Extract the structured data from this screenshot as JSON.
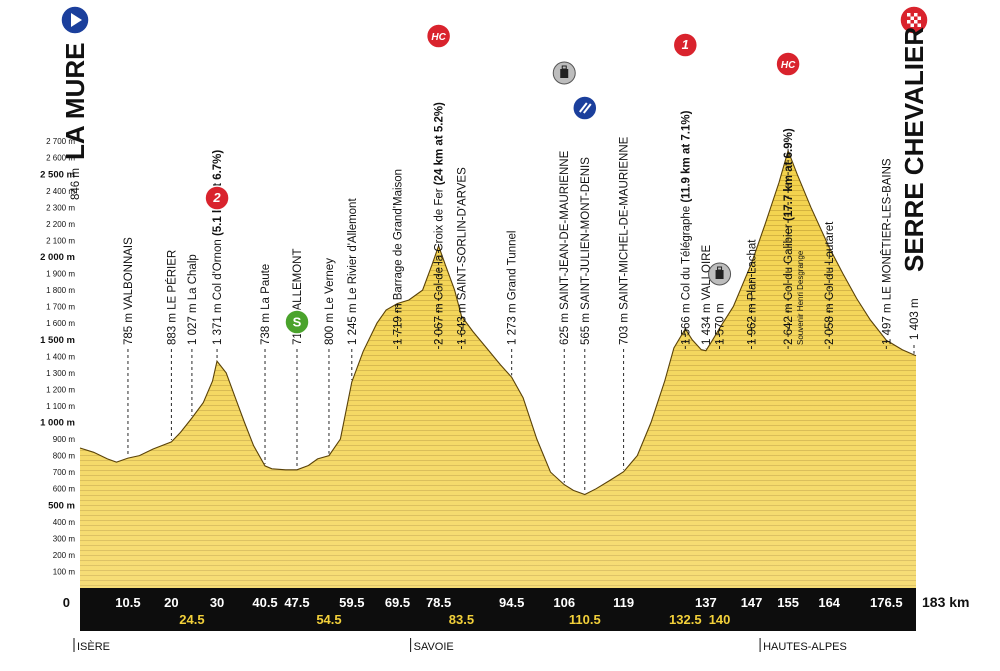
{
  "chart_data": {
    "type": "area",
    "title": "",
    "xlabel": "",
    "ylabel": "",
    "x_unit": "km",
    "total_km": "183 km",
    "xlim": [
      0,
      183
    ],
    "ylim": [
      0,
      2800
    ],
    "y_ticks": [
      {
        "v": 100,
        "label": "100 m",
        "bold": false
      },
      {
        "v": 200,
        "label": "200 m",
        "bold": false
      },
      {
        "v": 300,
        "label": "300 m",
        "bold": false
      },
      {
        "v": 400,
        "label": "400 m",
        "bold": false
      },
      {
        "v": 500,
        "label": "500 m",
        "bold": true
      },
      {
        "v": 600,
        "label": "600 m",
        "bold": false
      },
      {
        "v": 700,
        "label": "700 m",
        "bold": false
      },
      {
        "v": 800,
        "label": "800 m",
        "bold": false
      },
      {
        "v": 900,
        "label": "900 m",
        "bold": false
      },
      {
        "v": 1000,
        "label": "1 000 m",
        "bold": true
      },
      {
        "v": 1100,
        "label": "1 100 m",
        "bold": false
      },
      {
        "v": 1200,
        "label": "1 200 m",
        "bold": false
      },
      {
        "v": 1300,
        "label": "1 300 m",
        "bold": false
      },
      {
        "v": 1400,
        "label": "1 400 m",
        "bold": false
      },
      {
        "v": 1500,
        "label": "1 500 m",
        "bold": true
      },
      {
        "v": 1600,
        "label": "1 600 m",
        "bold": false
      },
      {
        "v": 1700,
        "label": "1 700 m",
        "bold": false
      },
      {
        "v": 1800,
        "label": "1 800 m",
        "bold": false
      },
      {
        "v": 1900,
        "label": "1 900 m",
        "bold": false
      },
      {
        "v": 2000,
        "label": "2 000 m",
        "bold": true
      },
      {
        "v": 2100,
        "label": "2 100 m",
        "bold": false
      },
      {
        "v": 2200,
        "label": "2 200 m",
        "bold": false
      },
      {
        "v": 2300,
        "label": "2 300 m",
        "bold": false
      },
      {
        "v": 2400,
        "label": "2 400 m",
        "bold": false
      },
      {
        "v": 2500,
        "label": "2 500 m",
        "bold": true
      },
      {
        "v": 2600,
        "label": "2 600 m",
        "bold": false
      },
      {
        "v": 2700,
        "label": "2 700 m",
        "bold": false
      }
    ],
    "profile": {
      "x": [
        0,
        3,
        6,
        8,
        10.5,
        13,
        16,
        20,
        22,
        24.5,
        27,
        29,
        30,
        32,
        34,
        36,
        38,
        40.5,
        42,
        45,
        47.5,
        50,
        52,
        54.5,
        57,
        59.5,
        62,
        65,
        67,
        69.5,
        72,
        75,
        77,
        78.5,
        80,
        82,
        83.5,
        86,
        89,
        92,
        94.5,
        97,
        100,
        103,
        106,
        108,
        110.5,
        113,
        116,
        119,
        122,
        125,
        128,
        130,
        132.5,
        134,
        136,
        137,
        138.5,
        140,
        143,
        147,
        150,
        153,
        155,
        157,
        160,
        164,
        167,
        170,
        173,
        176.5,
        180,
        183
      ],
      "y": [
        846,
        820,
        780,
        760,
        785,
        800,
        840,
        883,
        940,
        1027,
        1120,
        1250,
        1371,
        1300,
        1150,
        1000,
        860,
        738,
        720,
        714,
        714,
        740,
        780,
        800,
        900,
        1245,
        1430,
        1600,
        1680,
        1719,
        1740,
        1800,
        1950,
        2067,
        1950,
        1800,
        1643,
        1550,
        1450,
        1350,
        1273,
        1150,
        900,
        700,
        625,
        590,
        565,
        600,
        650,
        703,
        800,
        1000,
        1250,
        1450,
        1566,
        1500,
        1440,
        1434,
        1500,
        1570,
        1700,
        1962,
        2200,
        2450,
        2642,
        2500,
        2300,
        2058,
        1900,
        1750,
        1620,
        1497,
        1440,
        1403
      ]
    },
    "km_markers_top": [
      "10.5",
      "20",
      "30",
      "40.5",
      "47.5",
      "59.5",
      "69.5",
      "78.5",
      "94.5",
      "106",
      "119",
      "137",
      "147",
      "155",
      "164",
      "176.5"
    ],
    "km_markers_bottom": [
      "24.5",
      "54.5",
      "83.5",
      "110.5",
      "132.5",
      "140"
    ],
    "start": {
      "km": "0",
      "label": "846 m",
      "town": "LA MURE"
    },
    "finish": {
      "km": "183",
      "label": "1 403 m",
      "town": "SERRE CHEVALIER"
    },
    "points": [
      {
        "km": 10.5,
        "lines": [
          "785 m VALBONNAIS"
        ]
      },
      {
        "km": 20,
        "lines": [
          "883 m LE PÉRIER"
        ]
      },
      {
        "km": 24.5,
        "lines": [
          "1 027 m La Chalp"
        ]
      },
      {
        "km": 30,
        "lines": [
          "1 371 m Col d'Ornon (5.1 km at 6.7%)"
        ],
        "badge": "2"
      },
      {
        "km": 40.5,
        "lines": [
          "738 m La Paute"
        ]
      },
      {
        "km": 47.5,
        "lines": [
          "714 m ALLEMONT"
        ],
        "badge": "S"
      },
      {
        "km": 54.5,
        "lines": [
          "800 m Le Verney"
        ]
      },
      {
        "km": 59.5,
        "lines": [
          "1 245 m Le Rivier d'Allemont"
        ]
      },
      {
        "km": 69.5,
        "lines": [
          "1 719 m Barrage de Grand'Maison"
        ]
      },
      {
        "km": 78.5,
        "lines": [
          "2 067 m Col de la Croix de Fer (24 km at 5.2%)"
        ],
        "badge": "HC"
      },
      {
        "km": 83.5,
        "lines": [
          "1 643 m SAINT-SORLIN-D'ARVES"
        ]
      },
      {
        "km": 94.5,
        "lines": [
          "1 273 m Grand Tunnel"
        ]
      },
      {
        "km": 106,
        "lines": [
          "625 m SAINT-JEAN-DE-MAURIENNE"
        ],
        "badge": "feed"
      },
      {
        "km": 110.5,
        "lines": [
          "565 m SAINT-JULIEN-MONT-DENIS"
        ],
        "badge": "sprint"
      },
      {
        "km": 119,
        "lines": [
          "703 m SAINT-MICHEL-DE-MAURIENNE"
        ]
      },
      {
        "km": 132.5,
        "lines": [
          "1 566 m Col du Télégraphe (11.9 km at 7.1%)"
        ],
        "badge": "1"
      },
      {
        "km": 137,
        "lines": [
          "1 434 m VALLOIRE"
        ]
      },
      {
        "km": 140,
        "lines": [
          "1 570 m"
        ],
        "badge": "feed"
      },
      {
        "km": 147,
        "lines": [
          "1 962 m Plan Lachat"
        ]
      },
      {
        "km": 155,
        "lines": [
          "2 642 m Col du Galibier (17.7 km at 6.9%)",
          "Souvenir Henri Desgrange"
        ],
        "badge": "HC"
      },
      {
        "km": 164,
        "lines": [
          "2 058 m Col du Lautaret"
        ]
      },
      {
        "km": 176.5,
        "lines": [
          "1 497 m LE MONÊTIER-LES-BAINS"
        ]
      }
    ],
    "regions": [
      {
        "km": 0,
        "label": "ISÈRE"
      },
      {
        "km": 78.5,
        "label": "SAVOIE"
      },
      {
        "km": 155,
        "label": "HAUTES-ALPES"
      }
    ],
    "colors": {
      "fill_light": "#f5d64f",
      "fill_dark": "#e2b12a",
      "band": "#0d0d0d",
      "km_top": "#ffffff",
      "km_bottom": "#f2d03a",
      "badge_red": "#d9232d",
      "badge_green": "#4aa32c",
      "badge_blue": "#1b3f9c",
      "feed_grey": "#bdbdbd"
    }
  }
}
